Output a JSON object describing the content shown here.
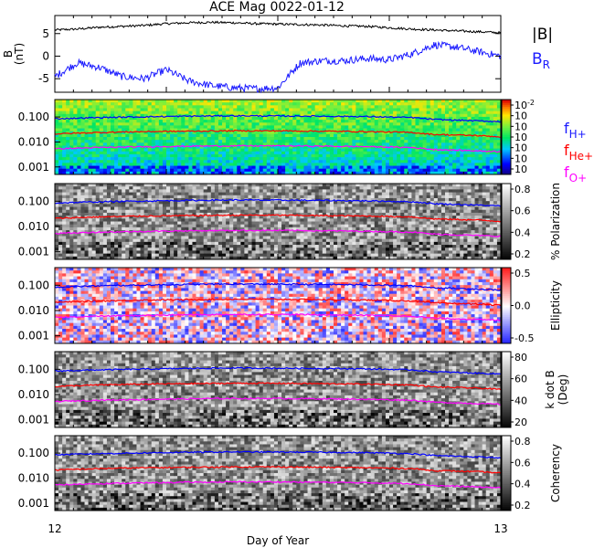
{
  "title": "ACE Mag 0022-01-12",
  "xlabel": "Day of Year",
  "x_ticks": [
    "12",
    "13"
  ],
  "colors": {
    "babs": "#000000",
    "br": "#1a1aff",
    "h": "#0000ff",
    "he": "#ff0000",
    "o": "#ff00ff"
  },
  "legend": {
    "babs": "|B|",
    "br_main": "B",
    "br_sub": "R",
    "fh_main": "f",
    "fh_sub": "H+",
    "fhe_main": "f",
    "fhe_sub": "He+",
    "fo_main": "f",
    "fo_sub": "O+"
  },
  "chart_data": [
    {
      "type": "line",
      "panel": "magnetic-field",
      "ylabel": "B (nT)",
      "ylabel_main": "B",
      "ylabel_unit": "(nT)",
      "yticks": [
        "5",
        "0",
        "-5"
      ],
      "ylim": [
        -8,
        9
      ],
      "x": [
        12.0,
        12.05,
        12.1,
        12.15,
        12.2,
        12.25,
        12.3,
        12.35,
        12.4,
        12.45,
        12.5,
        12.55,
        12.6,
        12.65,
        12.7,
        12.75,
        12.8,
        12.85,
        12.9,
        12.95,
        13.0
      ],
      "series": [
        {
          "name": "|B|",
          "values": [
            5.8,
            6.0,
            6.4,
            6.6,
            6.8,
            7.2,
            7.4,
            7.5,
            7.4,
            7.2,
            7.1,
            7.0,
            6.9,
            6.7,
            6.6,
            6.3,
            6.0,
            5.8,
            5.6,
            5.4,
            5.2
          ]
        },
        {
          "name": "B_R",
          "values": [
            -4.5,
            -1.5,
            -2.5,
            -4.5,
            -5.0,
            -3.0,
            -5.5,
            -6.5,
            -7.0,
            -7.2,
            -7.0,
            -1.5,
            -1.0,
            -1.0,
            -0.5,
            -0.8,
            0.5,
            2.5,
            2.0,
            1.0,
            0.0
          ]
        }
      ]
    },
    {
      "type": "heatmap",
      "panel": "power-spectrum",
      "ylabel": "",
      "yticks": [
        "0.100",
        "0.010",
        "0.001"
      ],
      "ylim": [
        0.0005,
        0.5
      ],
      "yscale": "log",
      "colorbar_label": "",
      "colorbar_ticks": [
        "10-2",
        "10",
        "10",
        "10",
        "10",
        "10",
        "10"
      ],
      "colorbar_exponents": [
        "-2",
        "",
        "",
        "",
        "",
        "",
        ""
      ],
      "colorscale": "rainbow"
    },
    {
      "type": "heatmap",
      "panel": "polarization",
      "yticks": [
        "0.100",
        "0.010",
        "0.001"
      ],
      "ylim": [
        0.0005,
        0.5
      ],
      "yscale": "log",
      "colorbar_label": "% Polarization",
      "colorbar_ticks": [
        "0.8",
        "0.6",
        "0.4",
        "0.2"
      ],
      "colorscale": "gray"
    },
    {
      "type": "heatmap",
      "panel": "ellipticity",
      "yticks": [
        "0.100",
        "0.010",
        "0.001"
      ],
      "ylim": [
        0.0005,
        0.5
      ],
      "yscale": "log",
      "colorbar_label": "Ellipticity",
      "colorbar_ticks": [
        "0.5",
        "0.0",
        "-0.5"
      ],
      "colorscale": "blue-white-red"
    },
    {
      "type": "heatmap",
      "panel": "k-dot-b",
      "yticks": [
        "0.100",
        "0.010",
        "0.001"
      ],
      "ylim": [
        0.0005,
        0.5
      ],
      "yscale": "log",
      "colorbar_label": "k dot B (Deg)",
      "colorbar_label_line1": "k dot B",
      "colorbar_label_line2": "(Deg)",
      "colorbar_ticks": [
        "80",
        "60",
        "40",
        "20"
      ],
      "colorscale": "gray"
    },
    {
      "type": "heatmap",
      "panel": "coherency",
      "yticks": [
        "0.100",
        "0.010",
        "0.001"
      ],
      "ylim": [
        0.0005,
        0.5
      ],
      "yscale": "log",
      "colorbar_label": "Coherency",
      "colorbar_ticks": [
        "0.8",
        "0.6",
        "0.4",
        "0.2"
      ],
      "colorscale": "gray"
    }
  ],
  "gyro_lines": {
    "x": [
      12.0,
      12.1,
      12.2,
      12.3,
      12.4,
      12.5,
      12.6,
      12.7,
      12.8,
      12.85,
      12.9,
      12.95,
      13.0
    ],
    "fH": [
      0.085,
      0.095,
      0.102,
      0.108,
      0.112,
      0.11,
      0.108,
      0.104,
      0.095,
      0.08,
      0.075,
      0.07,
      0.065
    ],
    "fHe": [
      0.021,
      0.024,
      0.026,
      0.027,
      0.028,
      0.028,
      0.027,
      0.026,
      0.024,
      0.02,
      0.019,
      0.018,
      0.016
    ],
    "fO": [
      0.0053,
      0.006,
      0.0064,
      0.0068,
      0.007,
      0.007,
      0.0068,
      0.0065,
      0.006,
      0.005,
      0.0047,
      0.0044,
      0.0041
    ]
  }
}
